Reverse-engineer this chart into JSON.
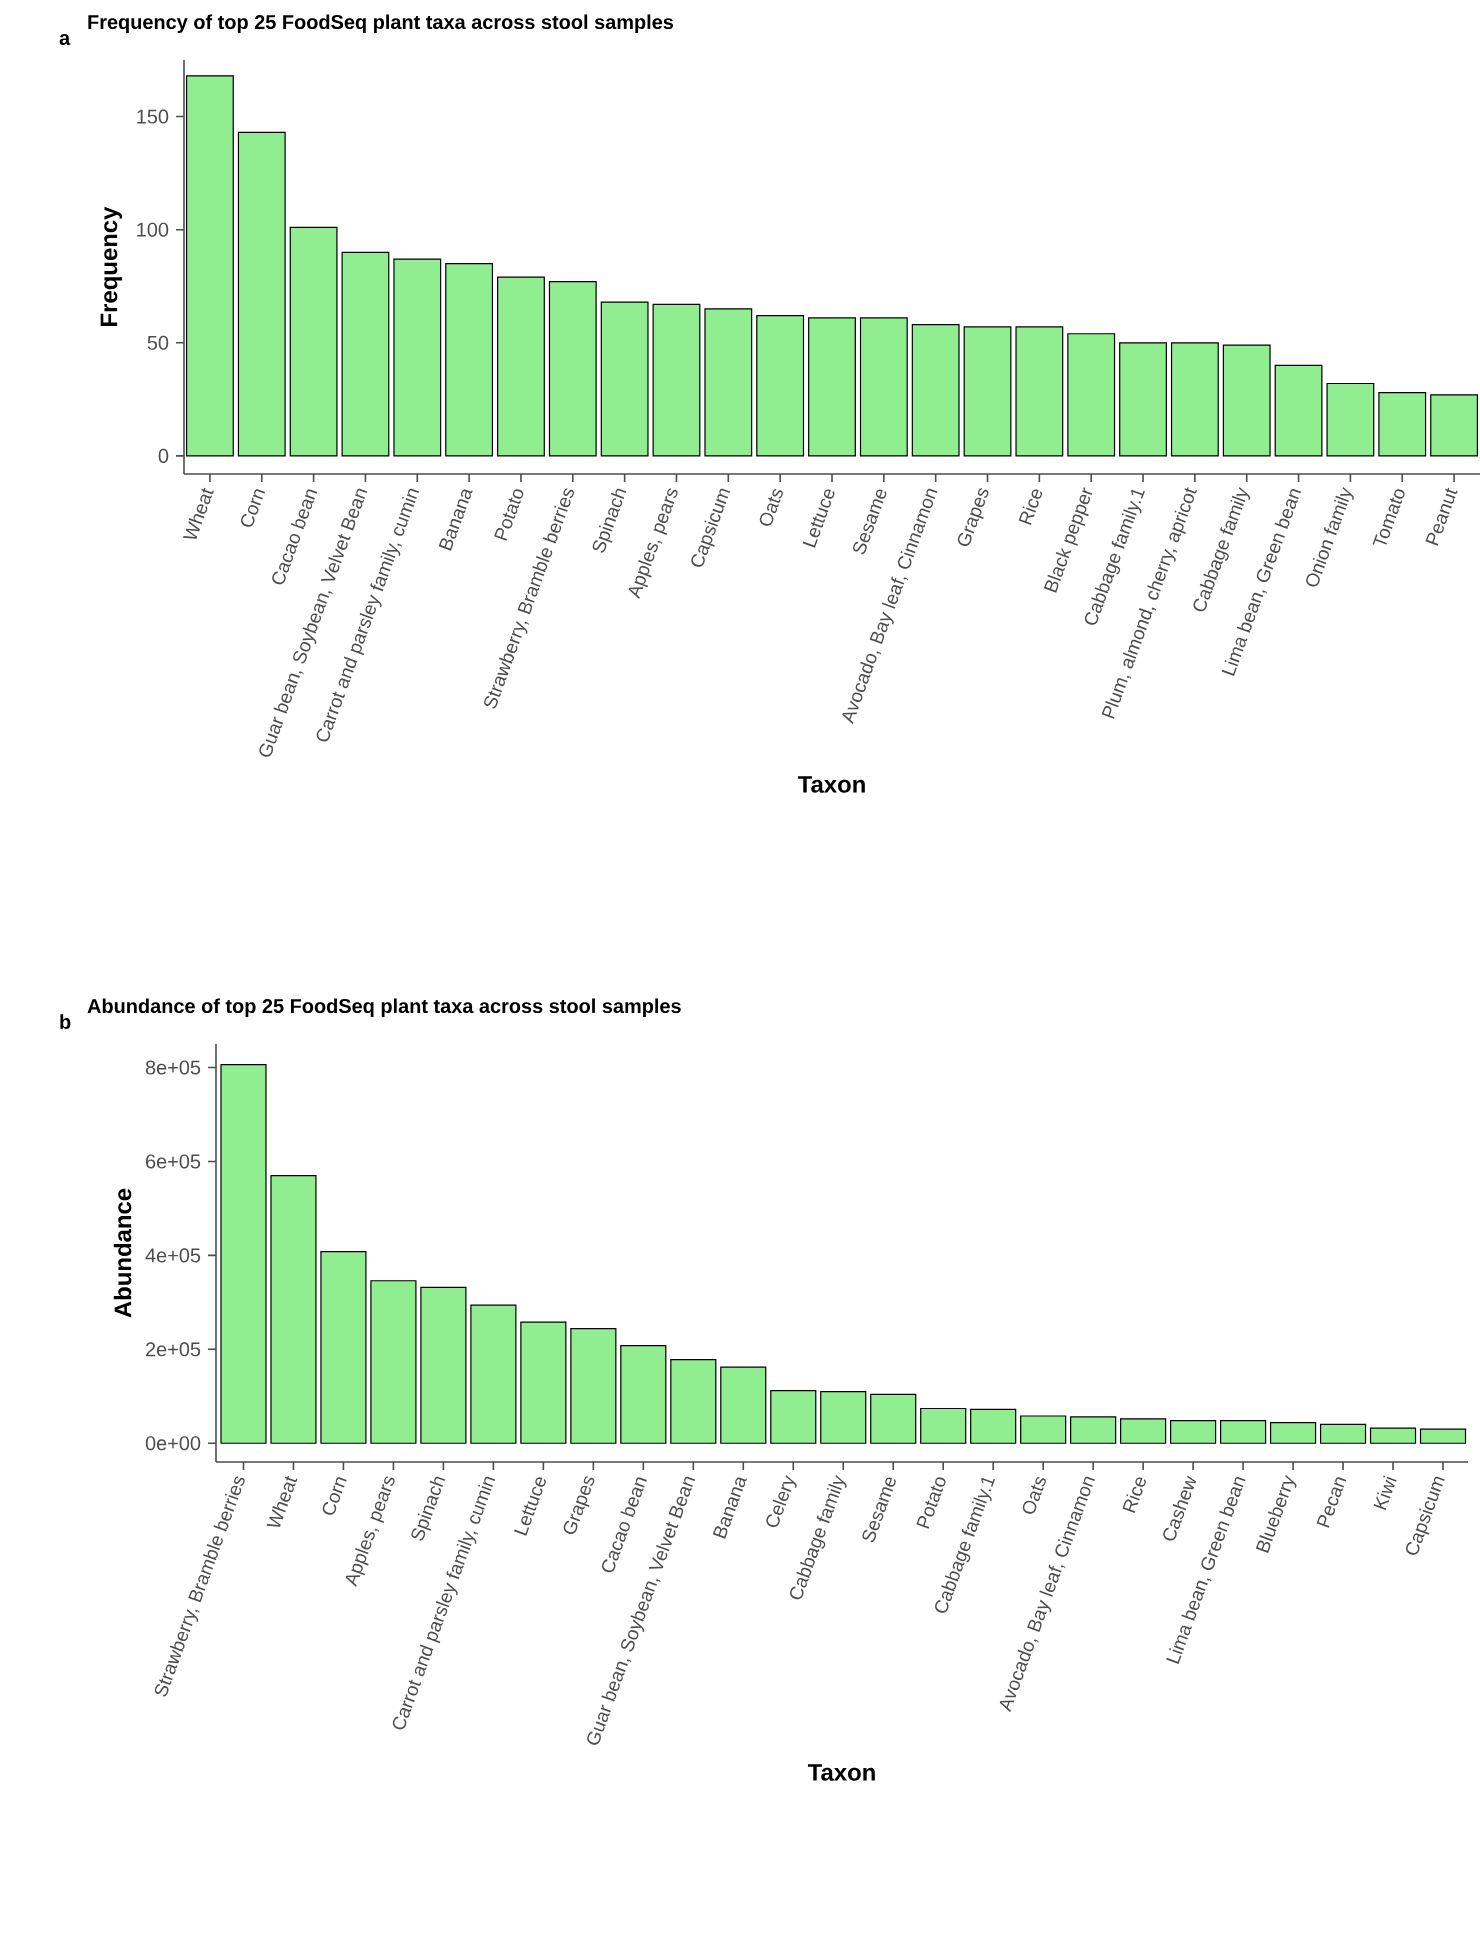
{
  "chart_data": [
    {
      "type": "bar",
      "title": "Frequency of top 25 FoodSeq plant taxa across stool samples",
      "xlabel": "Taxon",
      "ylabel": "Frequency",
      "annotations": [
        "a"
      ],
      "categories": [
        "Wheat",
        "Corn",
        "Cacao bean",
        "Guar bean, Soybean, Velvet Bean",
        "Carrot and parsley family, cumin",
        "Banana",
        "Potato",
        "Strawberry, Bramble berries",
        "Spinach",
        "Apples, pears",
        "Capsicum",
        "Oats",
        "Lettuce",
        "Sesame",
        "Avocado, Bay leaf, Cinnamon",
        "Grapes",
        "Rice",
        "Black pepper",
        "Cabbage family.1",
        "Plum, almond, cherry, apricot",
        "Cabbage family",
        "Lima bean, Green bean",
        "Onion family",
        "Tomato",
        "Peanut"
      ],
      "values": [
        168,
        143,
        101,
        90,
        87,
        85,
        79,
        77,
        68,
        67,
        65,
        62,
        61,
        61,
        58,
        57,
        57,
        54,
        50,
        50,
        49,
        40,
        32,
        28,
        27
      ],
      "color": "#90ee90",
      "ylim": [
        -8,
        175
      ],
      "yticks": [
        0,
        50,
        100,
        150
      ]
    },
    {
      "type": "bar",
      "title": "Abundance of top 25 FoodSeq plant taxa across stool samples",
      "xlabel": "Taxon",
      "ylabel": "Abundance",
      "annotations": [
        "b"
      ],
      "categories": [
        "Strawberry, Bramble berries",
        "Wheat",
        "Corn",
        "Apples, pears",
        "Spinach",
        "Carrot and parsley family, cumin",
        "Lettuce",
        "Grapes",
        "Cacao bean",
        "Guar bean, Soybean, Velvet Bean",
        "Banana",
        "Celery",
        "Cabbage family",
        "Sesame",
        "Potato",
        "Cabbage family.1",
        "Oats",
        "Avocado, Bay leaf, Cinnamon",
        "Rice",
        "Cashew",
        "Lima bean, Green bean",
        "Blueberry",
        "Pecan",
        "Kiwi",
        "Capsicum"
      ],
      "values": [
        806000,
        570000,
        408000,
        346000,
        332000,
        294000,
        258000,
        244000,
        208000,
        178000,
        162000,
        112000,
        110000,
        104000,
        74000,
        72000,
        58000,
        56000,
        52000,
        48000,
        48000,
        44000,
        40000,
        32000,
        30000
      ],
      "color": "#90ee90",
      "ylim": [
        -40000,
        850000
      ],
      "yticks": [
        {
          "value": 0,
          "label": "0e+00"
        },
        {
          "value": 200000,
          "label": "2e+05"
        },
        {
          "value": 400000,
          "label": "4e+05"
        },
        {
          "value": 600000,
          "label": "6e+05"
        },
        {
          "value": 800000,
          "label": "8e+05"
        }
      ]
    }
  ]
}
